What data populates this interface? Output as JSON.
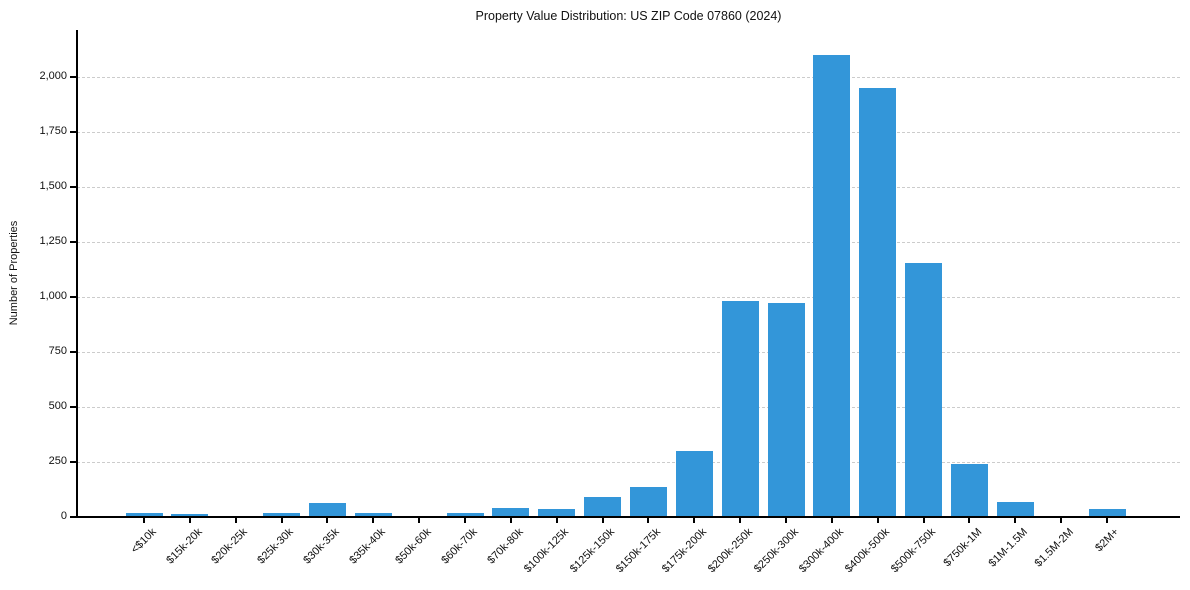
{
  "chart_data": {
    "type": "bar",
    "title": "Property Value Distribution: US ZIP Code 07860 (2024)",
    "xlabel": "",
    "ylabel": "Number of Properties",
    "categories": [
      "<$10k",
      "$15k-20k",
      "$20k-25k",
      "$25k-30k",
      "$30k-35k",
      "$35k-40k",
      "$50k-60k",
      "$60k-70k",
      "$70k-80k",
      "$100k-125k",
      "$125k-150k",
      "$150k-175k",
      "$175k-200k",
      "$200k-250k",
      "$250k-300k",
      "$300k-400k",
      "$400k-500k",
      "$500k-750k",
      "$750k-1M",
      "$1M-1.5M",
      "$1.5M-2M",
      "$2M+"
    ],
    "values": [
      20,
      12,
      5,
      20,
      62,
      18,
      6,
      20,
      42,
      35,
      90,
      138,
      300,
      980,
      975,
      2100,
      1950,
      1155,
      240,
      70,
      5,
      35
    ],
    "yticks": [
      {
        "value": 0,
        "label": "0"
      },
      {
        "value": 250,
        "label": "250"
      },
      {
        "value": 500,
        "label": "500"
      },
      {
        "value": 750,
        "label": "750"
      },
      {
        "value": 1000,
        "label": "1,000"
      },
      {
        "value": 1250,
        "label": "1,250"
      },
      {
        "value": 1500,
        "label": "1,500"
      },
      {
        "value": 1750,
        "label": "1,750"
      },
      {
        "value": 2000,
        "label": "2,000"
      }
    ],
    "ylim": [
      0,
      2214
    ],
    "grid": "horizontal-dashed",
    "legend": "none",
    "bar_color": "#3396d9",
    "axis_color": "#000000",
    "grid_color": "#cccccc",
    "text_color": "#111111"
  }
}
